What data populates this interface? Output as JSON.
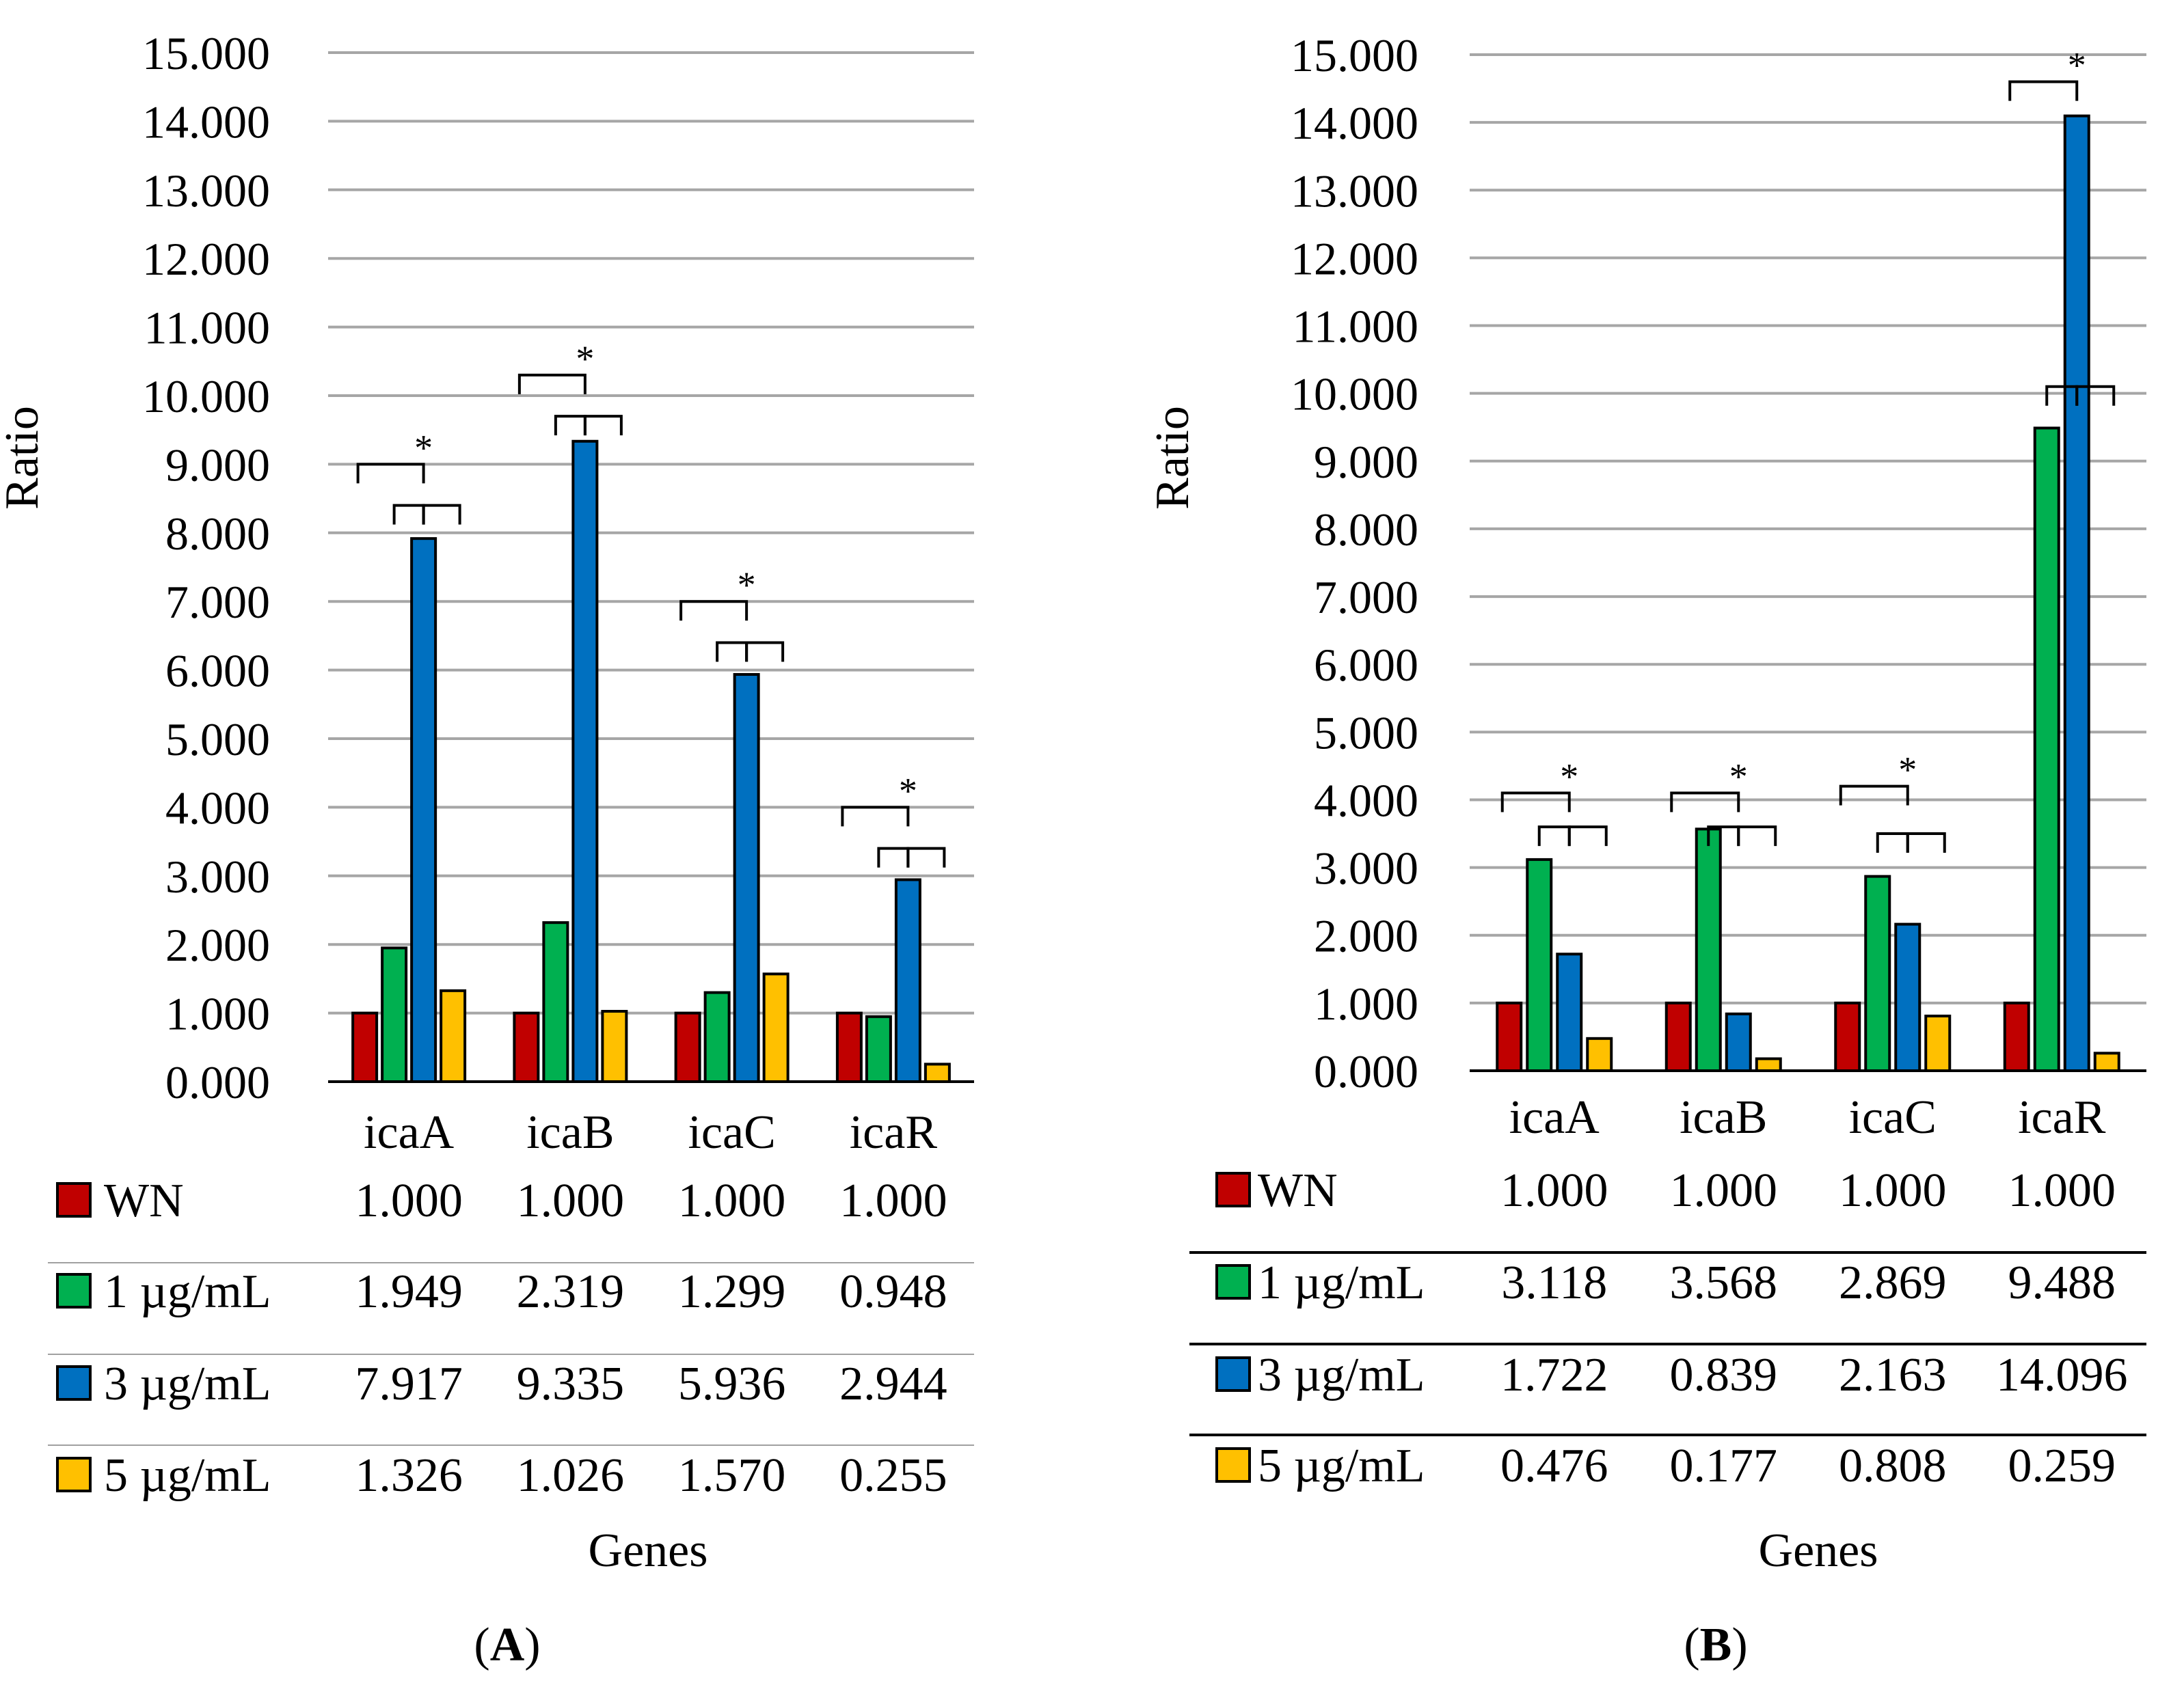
{
  "colors": {
    "WN": "#c00000",
    "1 µg/mL": "#00b050",
    "3 µg/mL": "#0070c0",
    "5 µg/mL": "#ffc000",
    "grid": "#a6a6a6"
  },
  "chart_data": [
    {
      "panel": "A",
      "type": "bar",
      "ylabel": "Ratio",
      "xlabel": "Genes",
      "categories": [
        "icaA",
        "icaB",
        "icaC",
        "icaR"
      ],
      "ylim": [
        0,
        15
      ],
      "yticks": [
        "0.000",
        "1.000",
        "2.000",
        "3.000",
        "4.000",
        "5.000",
        "6.000",
        "7.000",
        "8.000",
        "9.000",
        "10.000",
        "11.000",
        "12.000",
        "13.000",
        "14.000",
        "15.000"
      ],
      "series": [
        {
          "name": "WN",
          "values": [
            1.0,
            1.0,
            1.0,
            1.0
          ],
          "labels": [
            "1.000",
            "1.000",
            "1.000",
            "1.000"
          ]
        },
        {
          "name": "1 µg/mL",
          "values": [
            1.949,
            2.319,
            1.299,
            0.948
          ],
          "labels": [
            "1.949",
            "2.319",
            "1.299",
            "0.948"
          ]
        },
        {
          "name": "3 µg/mL",
          "values": [
            7.917,
            9.335,
            5.936,
            2.944
          ],
          "labels": [
            "7.917",
            "9.335",
            "5.936",
            "2.944"
          ]
        },
        {
          "name": "5 µg/mL",
          "values": [
            1.326,
            1.026,
            1.57,
            0.255
          ],
          "labels": [
            "1.326",
            "1.026",
            "1.570",
            "0.255"
          ]
        }
      ],
      "significance_marker": "*",
      "caption_label": "A"
    },
    {
      "panel": "B",
      "type": "bar",
      "ylabel": "Ratio",
      "xlabel": "Genes",
      "categories": [
        "icaA",
        "icaB",
        "icaC",
        "icaR"
      ],
      "ylim": [
        0,
        15
      ],
      "yticks": [
        "0.000",
        "1.000",
        "2.000",
        "3.000",
        "4.000",
        "5.000",
        "6.000",
        "7.000",
        "8.000",
        "9.000",
        "10.000",
        "11.000",
        "12.000",
        "13.000",
        "14.000",
        "15.000"
      ],
      "series": [
        {
          "name": "WN",
          "values": [
            1.0,
            1.0,
            1.0,
            1.0
          ],
          "labels": [
            "1.000",
            "1.000",
            "1.000",
            "1.000"
          ]
        },
        {
          "name": "1 µg/mL",
          "values": [
            3.118,
            3.568,
            2.869,
            9.488
          ],
          "labels": [
            "3.118",
            "3.568",
            "2.869",
            "9.488"
          ]
        },
        {
          "name": "3 µg/mL",
          "values": [
            1.722,
            0.839,
            2.163,
            14.096
          ],
          "labels": [
            "1.722",
            "0.839",
            "2.163",
            "14.096"
          ]
        },
        {
          "name": "5 µg/mL",
          "values": [
            0.476,
            0.177,
            0.808,
            0.259
          ],
          "labels": [
            "0.476",
            "0.177",
            "0.808",
            "0.259"
          ]
        }
      ],
      "significance_marker": "*",
      "caption_label": "B"
    }
  ]
}
